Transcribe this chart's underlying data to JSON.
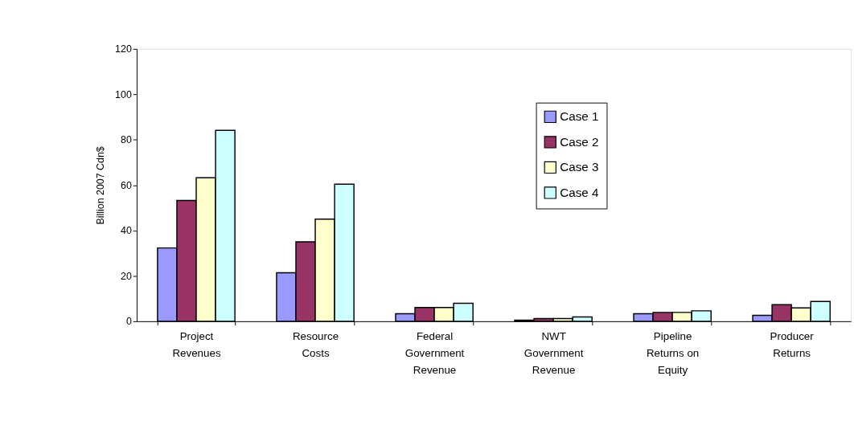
{
  "chart_data": {
    "type": "bar",
    "ylabel": "Billion 2007 Cdn$",
    "categories": [
      "Project Revenues",
      "Resource Costs",
      "Federal Government Revenue",
      "NWT Government Revenue",
      "Pipeline Returns on Equity",
      "Producer Returns"
    ],
    "series": [
      {
        "name": "Case 1",
        "color": "#9999ff",
        "values": [
          32.3,
          21.4,
          3.3,
          0.5,
          3.3,
          2.6
        ]
      },
      {
        "name": "Case 2",
        "color": "#993366",
        "values": [
          53.2,
          35.0,
          6.1,
          1.2,
          3.9,
          7.3
        ]
      },
      {
        "name": "Case 3",
        "color": "#ffffcc",
        "values": [
          63.2,
          45.0,
          6.1,
          1.2,
          3.9,
          5.9
        ]
      },
      {
        "name": "Case 4",
        "color": "#ccffff",
        "values": [
          84.1,
          60.4,
          7.9,
          1.9,
          4.6,
          8.7
        ]
      }
    ],
    "ylim": [
      0,
      120
    ],
    "yticks": [
      0,
      20,
      40,
      60,
      80,
      100,
      120
    ],
    "grid": false,
    "legend": "top"
  }
}
